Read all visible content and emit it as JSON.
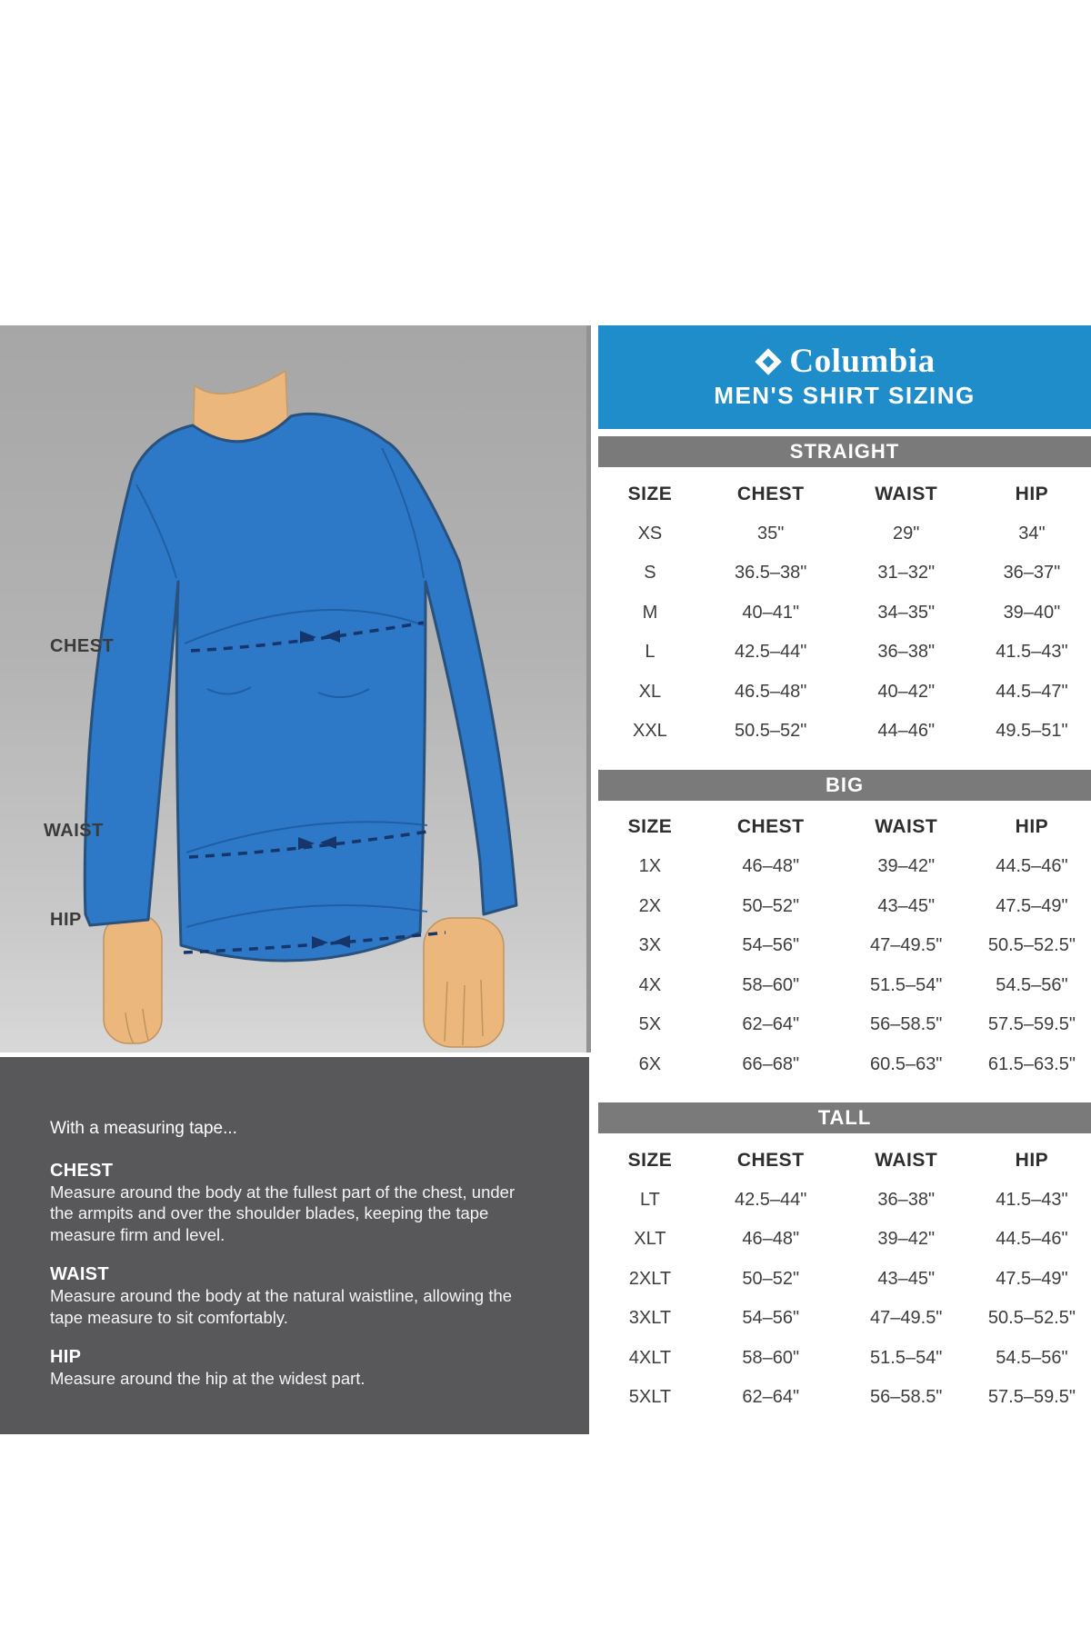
{
  "brand": {
    "logo_text": "Columbia",
    "title": "MEN'S SHIRT SIZING",
    "logo_icon": "columbia-diamond-icon"
  },
  "colors": {
    "header_blue": "#1e8dc9",
    "section_bar_gray": "#7a7a7a",
    "instructions_gray": "#58585a",
    "shirt_blue": "#2e79c7",
    "shirt_outline": "#28517e",
    "skin_tan": "#ecb77d",
    "measure_line_navy": "#16356b",
    "table_text": "#3d3d3d"
  },
  "diagram": {
    "chest_label": "CHEST",
    "waist_label": "WAIST",
    "hip_label": "HIP"
  },
  "instructions": {
    "intro": "With a measuring tape...",
    "sections": [
      {
        "heading": "CHEST",
        "body": "Measure around the body at the fullest part of the chest, under the armpits and over the shoulder blades, keeping the tape measure firm and level."
      },
      {
        "heading": "WAIST",
        "body": "Measure around the body at the natural waistline, allowing the tape measure to sit comfortably."
      },
      {
        "heading": "HIP",
        "body": "Measure around the hip at the widest part."
      }
    ]
  },
  "tables": [
    {
      "section": "STRAIGHT",
      "columns": [
        "SIZE",
        "CHEST",
        "WAIST",
        "HIP"
      ],
      "rows": [
        [
          "XS",
          "35\"",
          "29\"",
          "34\""
        ],
        [
          "S",
          "36.5–38\"",
          "31–32\"",
          "36–37\""
        ],
        [
          "M",
          "40–41\"",
          "34–35\"",
          "39–40\""
        ],
        [
          "L",
          "42.5–44\"",
          "36–38\"",
          "41.5–43\""
        ],
        [
          "XL",
          "46.5–48\"",
          "40–42\"",
          "44.5–47\""
        ],
        [
          "XXL",
          "50.5–52\"",
          "44–46\"",
          "49.5–51\""
        ]
      ]
    },
    {
      "section": "BIG",
      "columns": [
        "SIZE",
        "CHEST",
        "WAIST",
        "HIP"
      ],
      "rows": [
        [
          "1X",
          "46–48\"",
          "39–42\"",
          "44.5–46\""
        ],
        [
          "2X",
          "50–52\"",
          "43–45\"",
          "47.5–49\""
        ],
        [
          "3X",
          "54–56\"",
          "47–49.5\"",
          "50.5–52.5\""
        ],
        [
          "4X",
          "58–60\"",
          "51.5–54\"",
          "54.5–56\""
        ],
        [
          "5X",
          "62–64\"",
          "56–58.5\"",
          "57.5–59.5\""
        ],
        [
          "6X",
          "66–68\"",
          "60.5–63\"",
          "61.5–63.5\""
        ]
      ]
    },
    {
      "section": "TALL",
      "columns": [
        "SIZE",
        "CHEST",
        "WAIST",
        "HIP"
      ],
      "rows": [
        [
          "LT",
          "42.5–44\"",
          "36–38\"",
          "41.5–43\""
        ],
        [
          "XLT",
          "46–48\"",
          "39–42\"",
          "44.5–46\""
        ],
        [
          "2XLT",
          "50–52\"",
          "43–45\"",
          "47.5–49\""
        ],
        [
          "3XLT",
          "54–56\"",
          "47–49.5\"",
          "50.5–52.5\""
        ],
        [
          "4XLT",
          "58–60\"",
          "51.5–54\"",
          "54.5–56\""
        ],
        [
          "5XLT",
          "62–64\"",
          "56–58.5\"",
          "57.5–59.5\""
        ]
      ]
    }
  ]
}
